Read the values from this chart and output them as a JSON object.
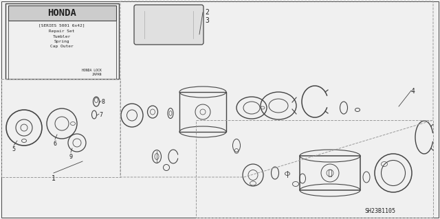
{
  "bg_color": "#f0f0f0",
  "border_color": "#888888",
  "title": "HONDA",
  "label_box_lines": [
    "[SERIES 5001 6x42]",
    "Repair Set",
    "Tumbler",
    "Spring",
    "Cap Outer",
    "",
    "HONDA LOCK",
    "JAPAN"
  ],
  "part_numbers": [
    "1",
    "2",
    "3",
    "4",
    "5",
    "6",
    "7",
    "8",
    "9"
  ],
  "diagram_code": "SH23B1105",
  "line_color": "#444444",
  "text_color": "#222222"
}
